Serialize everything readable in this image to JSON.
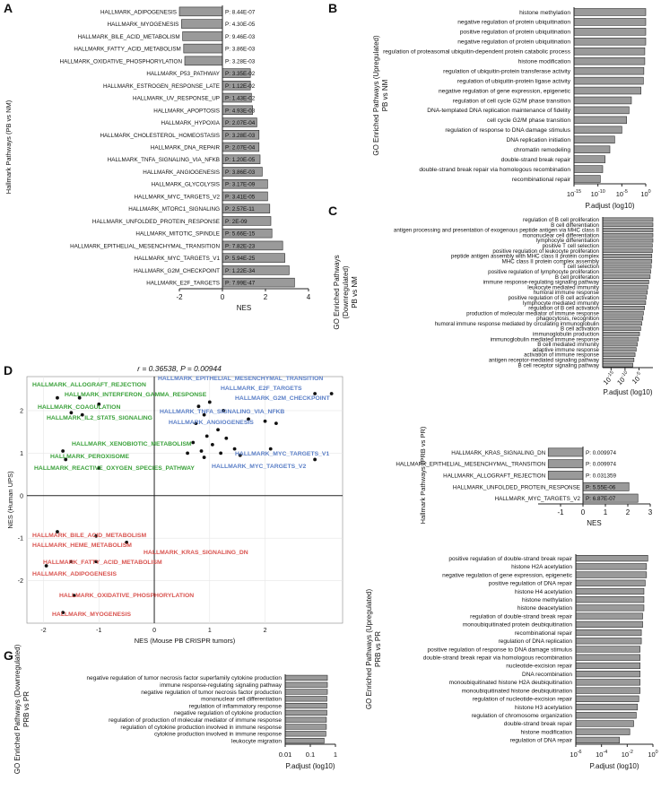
{
  "colors": {
    "bar": "#9a9a9a",
    "bar_stroke": "#2b2b2b",
    "green": "#3aa13a",
    "blue": "#5b7fc7",
    "red": "#d9534f",
    "axis": "#222222"
  },
  "chart_data": [
    {
      "panel": "A",
      "type": "bar",
      "orientation": "horizontal",
      "ylabel": "Hallmark Pathways (PB vs NM)",
      "xlabel": "NES",
      "xlim": [
        -2,
        4
      ],
      "xticks": [
        -2,
        0,
        2,
        4
      ],
      "categories": [
        "HALLMARK_ADIPOGENESIS",
        "HALLMARK_MYOGENESIS",
        "HALLMARK_BILE_ACID_METABOLISM",
        "HALLMARK_FATTY_ACID_METABOLISM",
        "HALLMARK_OXIDATIVE_PHOSPHORYLATION",
        "HALLMARK_P53_PATHWAY",
        "HALLMARK_ESTROGEN_RESPONSE_LATE",
        "HALLMARK_UV_RESPONSE_UP",
        "HALLMARK_APOPTOSIS",
        "HALLMARK_HYPOXIA",
        "HALLMARK_CHOLESTEROL_HOMEOSTASIS",
        "HALLMARK_DNA_REPAIR",
        "HALLMARK_TNFA_SIGNALING_VIA_NFKB",
        "HALLMARK_ANGIOGENESIS",
        "HALLMARK_GLYCOLYSIS",
        "HALLMARK_MYC_TARGETS_V2",
        "HALLMARK_MTORC1_SIGNALING",
        "HALLMARK_UNFOLDED_PROTEIN_RESPONSE",
        "HALLMARK_MITOTIC_SPINDLE",
        "HALLMARK_EPITHELIAL_MESENCHYMAL_TRANSITION",
        "HALLMARK_MYC_TARGETS_V1",
        "HALLMARK_G2M_CHECKPOINT",
        "HALLMARK_E2F_TARGETS"
      ],
      "values": [
        -2.0,
        -1.9,
        -1.85,
        -1.8,
        -1.75,
        1.3,
        1.3,
        1.35,
        1.4,
        1.6,
        1.7,
        1.7,
        1.75,
        1.85,
        2.1,
        2.1,
        2.2,
        2.25,
        2.3,
        2.8,
        2.9,
        3.1,
        3.35
      ],
      "pvalues": [
        "P: 8.44E-07",
        "P: 4.30E-05",
        "P: 9.46E-03",
        "P: 3.86E-03",
        "P: 3.28E-03",
        "P: 3.35E-02",
        "P: 1.12E-02",
        "P: 1.43E-02",
        "P: 4.93E-03",
        "P: 2.07E-04",
        "P: 3.28E-03",
        "P: 2.07E-04",
        "P: 1.20E-05",
        "P: 3.86E-03",
        "P: 3.17E-09",
        "P: 3.41E-05",
        "P: 2.57E-11",
        "P: 2E-09",
        "P: 5.66E-15",
        "P: 7.82E-23",
        "P: 5.94E-25",
        "P: 1.22E-34",
        "P: 7.99E-47"
      ]
    },
    {
      "panel": "B",
      "type": "bar",
      "orientation": "horizontal",
      "log_x": true,
      "ylabel_lines": [
        "GO Enriched Pathways (Upregulated)",
        "PB vs NM"
      ],
      "xlabel": "P.adjust (log10)",
      "xlim_exp": [
        -15,
        0
      ],
      "xticks": [
        "10^-15",
        "10^-10",
        "10^-5",
        "10^0"
      ],
      "categories": [
        "histone methylation",
        "negative regulation of protein ubiquitination",
        "positive regulation of protein ubiquitination",
        "negative regulation of protein ubiquitination",
        "regulation of proteasomal ubiquitin-dependent protein catabolic process",
        "histone modification",
        "regulation of ubiquitin-protein transferase activity",
        "regulation of ubiquitin-protein ligase activity",
        "negative regulation of gene expression, epigenetic",
        "regulation of cell cycle G2/M phase transition",
        "DNA-templated DNA replication maintenance of fidelity",
        "cell cycle G2/M phase transition",
        "regulation of response to DNA damage stimulus",
        "DNA replication initiation",
        "chromatin remodeling",
        "double-strand break repair",
        "double-strand break repair via homologous recombination",
        "recombinational repair"
      ],
      "values_log10": [
        -15,
        -15,
        -15,
        -15,
        -14.8,
        -14.8,
        -14.6,
        -14.5,
        -14,
        -12,
        -11.5,
        -11,
        -10,
        -8.5,
        -7.5,
        -6.5,
        -6,
        -5.5
      ]
    },
    {
      "panel": "C",
      "type": "bar",
      "orientation": "horizontal",
      "log_x": true,
      "ylabel_lines": [
        "GO Enriched Pathways",
        "(Downregulated)",
        "PB vs NM"
      ],
      "xlabel": "P.adjust (log10)",
      "xlim_exp": [
        -18,
        0
      ],
      "xticks": [
        "10^-15",
        "10^-10",
        "10^-5"
      ],
      "categories": [
        "regulation of B cell proliferation",
        "B cell differentiation",
        "antigen processing and presentation of exogenous peptide antigen via MHC class II",
        "mononuclear cell differentiation",
        "lymphocyte differentiation",
        "positive T cell selection",
        "positive regulation of leukocyte proliferation",
        "peptide antigen assembly with MHC class II protein complex",
        "MHC class II protein complex assembly",
        "T cell selection",
        "positive regulation of lymphocyte proliferation",
        "B cell proliferation",
        "immune response-regulating signaling pathway",
        "leukocyte mediated immunity",
        "humoral immune response",
        "positive regulation of B cell activation",
        "lymphocyte mediated immunity",
        "regulation of B cell activation",
        "production of molecular mediator of immune response",
        "phagocytosis, recognition",
        "humoral immune response mediated by circulating immunoglobulin",
        "B cell activation",
        "immunoglobulin production",
        "immunoglobulin mediated immune response",
        "B cell mediated immunity",
        "adaptive immune response",
        "activation of immune response",
        "antigen receptor-mediated signaling pathway",
        "B cell receptor signaling pathway"
      ],
      "values_log10": [
        -18,
        -18,
        -18,
        -18,
        -18,
        -17.8,
        -17.8,
        -17.6,
        -17.6,
        -17.4,
        -17.2,
        -17,
        -16.5,
        -16.2,
        -16,
        -15.6,
        -15.4,
        -15,
        -14.6,
        -14.4,
        -14,
        -13.6,
        -13.2,
        -12.8,
        -12.4,
        -12,
        -11.6,
        -11.2,
        -10.8
      ]
    },
    {
      "panel": "D",
      "type": "scatter",
      "stat_text": "r = 0.36538, P = 0.00944",
      "xlabel": "NES (Mouse PB CRISPR tumors)",
      "ylabel": "NES (Human UPS)",
      "xlim": [
        -2.3,
        3.4
      ],
      "ylim": [
        -3.0,
        2.8
      ],
      "xticks": [
        -2,
        -1,
        0,
        1,
        2
      ],
      "yticks": [
        -2,
        -1,
        0,
        1,
        2
      ],
      "points": [
        {
          "x": -1.75,
          "y": 2.3
        },
        {
          "x": -1.35,
          "y": 2.3
        },
        {
          "x": -1.0,
          "y": 2.15
        },
        {
          "x": -1.5,
          "y": 1.95
        },
        {
          "x": -1.3,
          "y": 1.9
        },
        {
          "x": -1.65,
          "y": 1.05
        },
        {
          "x": -1.6,
          "y": 0.85
        },
        {
          "x": -1.0,
          "y": 0.65
        },
        {
          "x": 0.8,
          "y": 2.1
        },
        {
          "x": 1.0,
          "y": 2.2
        },
        {
          "x": 1.25,
          "y": 2.0
        },
        {
          "x": 0.9,
          "y": 1.9
        },
        {
          "x": 0.75,
          "y": 1.7
        },
        {
          "x": 1.15,
          "y": 1.55
        },
        {
          "x": 0.95,
          "y": 1.4
        },
        {
          "x": 1.3,
          "y": 1.35
        },
        {
          "x": 0.7,
          "y": 1.25
        },
        {
          "x": 1.05,
          "y": 1.2
        },
        {
          "x": 1.45,
          "y": 1.1
        },
        {
          "x": 0.85,
          "y": 1.05
        },
        {
          "x": 1.2,
          "y": 1.0
        },
        {
          "x": 1.55,
          "y": 0.95
        },
        {
          "x": 0.9,
          "y": 0.9
        },
        {
          "x": 0.6,
          "y": 1.0
        },
        {
          "x": 1.7,
          "y": 1.8
        },
        {
          "x": 2.0,
          "y": 1.75
        },
        {
          "x": 2.2,
          "y": 1.7
        },
        {
          "x": 2.9,
          "y": 2.4
        },
        {
          "x": 3.2,
          "y": 2.4
        },
        {
          "x": 2.1,
          "y": 1.1
        },
        {
          "x": 2.9,
          "y": 0.85
        },
        {
          "x": -1.75,
          "y": -0.85
        },
        {
          "x": -1.05,
          "y": -0.95
        },
        {
          "x": -0.5,
          "y": -1.1
        },
        {
          "x": -1.5,
          "y": -1.55
        },
        {
          "x": -1.05,
          "y": -1.55
        },
        {
          "x": -1.95,
          "y": -1.65
        },
        {
          "x": -1.45,
          "y": -2.35
        },
        {
          "x": -1.65,
          "y": -2.75
        }
      ],
      "annotations": [
        {
          "text": "HALLMARK_ALLOGRAFT_REJECTION",
          "group": "green"
        },
        {
          "text": "HALLMARK_INTERFERON_GAMMA_RESPONSE",
          "group": "green"
        },
        {
          "text": "HALLMARK_COAGULATION",
          "group": "green"
        },
        {
          "text": "HALLMARK_IL2_STAT5_SIGNALING",
          "group": "green"
        },
        {
          "text": "HALLMARK_XENOBIOTIC_METABOLISM",
          "group": "green"
        },
        {
          "text": "HALLMARK_PEROXISOME",
          "group": "green"
        },
        {
          "text": "HALLMARK_REACTIVE_OXYGEN_SPECIES_PATHWAY",
          "group": "green"
        },
        {
          "text": "HALLMARK_EPITHELIAL_MESENCHYMAL_TRANSITION",
          "group": "blue"
        },
        {
          "text": "HALLMARK_E2F_TARGETS",
          "group": "blue"
        },
        {
          "text": "HALLMARK_G2M_CHECKPOINT",
          "group": "blue"
        },
        {
          "text": "HALLMARK_TNFA_SIGNALING_VIA_NFKB",
          "group": "blue"
        },
        {
          "text": "HALLMARK_ANGIOGENESIS",
          "group": "blue"
        },
        {
          "text": "HALLMARK_MYC_TARGETS_V1",
          "group": "blue"
        },
        {
          "text": "HALLMARK_MYC_TARGETS_V2",
          "group": "blue"
        },
        {
          "text": "HALLMARK_BILE_ACID_METABOLISM",
          "group": "red"
        },
        {
          "text": "HALLMARK_HEME_METABOLISM",
          "group": "red"
        },
        {
          "text": "HALLMARK_KRAS_SIGNALING_DN",
          "group": "red"
        },
        {
          "text": "HALLMARK_FATTY_ACID_METABOLISM",
          "group": "red"
        },
        {
          "text": "HALLMARK_ADIPOGENESIS",
          "group": "red"
        },
        {
          "text": "HALLMARK_OXIDATIVE_PHOSPHORYLATION",
          "group": "red"
        },
        {
          "text": "HALLMARK_MYOGENESIS",
          "group": "red"
        }
      ]
    },
    {
      "panel": "E",
      "type": "bar",
      "orientation": "horizontal",
      "ylabel": "Hallmark Pathways (PRB vs PR)",
      "xlabel": "NES",
      "xlim": [
        -2,
        3
      ],
      "xticks": [
        -1,
        0,
        1,
        2,
        3
      ],
      "categories": [
        "HALLMARK_KRAS_SIGNALING_DN",
        "HALLMARK_EPITHELIAL_MESENCHYMAL_TRANSITION",
        "HALLMARK_ALLOGRAFT_REJECTION",
        "HALLMARK_UNFOLDED_PROTEIN_RESPONSE",
        "HALLMARK_MYC_TARGETS_V2"
      ],
      "values": [
        -1.55,
        -1.55,
        -1.55,
        2.05,
        2.45
      ],
      "pvalues": [
        "P: 0.009974",
        "P: 0.009974",
        "P: 0.031359",
        "P: 5.55E-06",
        "P: 6.87E-07"
      ]
    },
    {
      "panel": "F",
      "type": "bar",
      "orientation": "horizontal",
      "log_x": true,
      "ylabel_lines": [
        "GO Enriched Pathways (Upregulated)",
        "PRB vs PR"
      ],
      "xlabel": "P.adjust (log10)",
      "xlim_exp": [
        -6,
        0
      ],
      "xticks": [
        "10^-6",
        "10^-4",
        "10^-2",
        "10^0"
      ],
      "categories": [
        "positive regulation of double-strand break repair",
        "histone H2A acetylation",
        "negative regulation of gene expression, epigenetic",
        "positive regulation of DNA repair",
        "histone H4 acetylation",
        "histone methylation",
        "histone deacetylation",
        "regulation of double-strand break repair",
        "monoubiquitinated protein deubiquitination",
        "recombinational repair",
        "regulation of DNA replication",
        "positive regulation of response to DNA damage stimulus",
        "double-strand break repair via homologous recombination",
        "nucleotide-excision repair",
        "DNA recombination",
        "monoubiquitinated histone H2A deubiquitination",
        "monoubiquitinated histone deubiquitination",
        "regulation of nucleotide-excision repair",
        "histone H3 acetylation",
        "regulation of chromosome organization",
        "double-strand break repair",
        "histone modification",
        "regulation of DNA repair"
      ],
      "values_log10": [
        -5.6,
        -5.5,
        -5.5,
        -5.4,
        -5.3,
        -5.3,
        -5.3,
        -5.2,
        -5.2,
        -5.1,
        -5.1,
        -5.0,
        -5.0,
        -5.0,
        -5.0,
        -5.0,
        -5.0,
        -4.9,
        -4.8,
        -4.7,
        -4.5,
        -4.2,
        -3.4
      ]
    },
    {
      "panel": "G",
      "type": "bar",
      "orientation": "horizontal",
      "log_x": true,
      "ylabel_lines": [
        "GO Enriched Pathways (Downregulated)",
        "PRB vs PR"
      ],
      "xlabel": "P.adjust (log10)",
      "xlim_exp": [
        -2,
        0
      ],
      "xticks": [
        "0.01",
        "0.1",
        "1"
      ],
      "categories": [
        "negative regulation of tumor necrosis factor superfamily cytokine production",
        "immune response-regulating signaling pathway",
        "negative regulation of tumor necrosis factor production",
        "mononuclear cell differentiation",
        "regulation of inflammatory response",
        "negative regulation of cytokine production",
        "regulation of production of molecular mediator of immune response",
        "regulation of cytokine production involved in immune response",
        "cytokine production involved in immune response",
        "leukocyte migration"
      ],
      "values_log10": [
        -1.68,
        -1.68,
        -1.68,
        -1.66,
        -1.66,
        -1.66,
        -1.64,
        -1.64,
        -1.62,
        -1.55
      ]
    }
  ],
  "panel_letters": [
    "A",
    "B",
    "C",
    "D",
    "E",
    "F",
    "G"
  ]
}
